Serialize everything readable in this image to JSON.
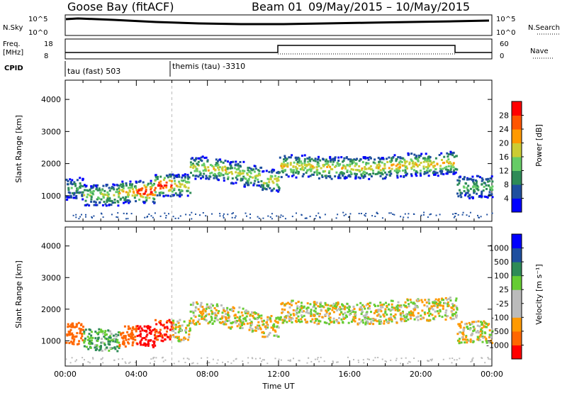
{
  "header": {
    "title": "Goose Bay (fitACF)",
    "beam": "Beam 01",
    "date_range": "09/May/2015 – 10/May/2015"
  },
  "panels": {
    "nsky_label": "N.Sky",
    "nsearch_label": "N.Search",
    "freq_label_1": "Freq.",
    "freq_label_2": "[MHz]",
    "nave_label": "Nave",
    "cpid_label": "CPID",
    "exp_left": "tau (fast) 503",
    "exp_right": "themis (tau) -3310",
    "noise_left_ticks": [
      "10^5",
      "10^0"
    ],
    "noise_right_ticks": [
      "10^5",
      "10^0"
    ],
    "freq_left_ticks": [
      "18",
      "8"
    ],
    "freq_right_ticks": [
      "60",
      "0"
    ]
  },
  "colors": {
    "power": [
      "#0000ff",
      "#1f4f9f",
      "#2e8b57",
      "#66cc66",
      "#cccc33",
      "#ff9900",
      "#ff5500",
      "#ff0000"
    ],
    "velocity": [
      "#ff0000",
      "#ff6600",
      "#ff9900",
      "#bbbbbb",
      "#bbbbbb",
      "#66cc33",
      "#2e8b57",
      "#1f4f9f",
      "#0000ff"
    ]
  },
  "chart_data": [
    {
      "type": "heatmap",
      "name": "power",
      "xlabel": "",
      "ylabel": "Slant Range [km]",
      "xlim": [
        0,
        24
      ],
      "ylim": [
        200,
        4600
      ],
      "y_ticks": [
        "4000",
        "3000",
        "2000",
        "1000"
      ],
      "colorbar_label": "Power [dB]",
      "colorbar_ticks": [
        "28",
        "24",
        "20",
        "16",
        "12",
        "8",
        "4"
      ],
      "x": [
        0,
        1,
        2,
        3,
        4,
        5,
        6,
        7,
        8,
        9,
        10,
        11,
        12,
        13,
        14,
        15,
        16,
        17,
        18,
        19,
        20,
        21,
        22,
        23
      ],
      "echo_band_center_km": [
        1250,
        1050,
        1050,
        1150,
        1150,
        1350,
        1350,
        1900,
        1850,
        1750,
        1650,
        1500,
        1950,
        1950,
        1900,
        1900,
        1900,
        1900,
        1950,
        2000,
        2000,
        2050,
        1300,
        1300
      ],
      "peak_power_db": [
        10,
        14,
        16,
        20,
        30,
        28,
        18,
        16,
        18,
        16,
        16,
        18,
        18,
        18,
        18,
        18,
        18,
        18,
        20,
        20,
        20,
        20,
        12,
        12
      ]
    },
    {
      "type": "heatmap",
      "name": "velocity",
      "xlabel": "Time UT",
      "ylabel": "Slant Range [km]",
      "xlim": [
        0,
        24
      ],
      "ylim": [
        200,
        4600
      ],
      "x_ticks": [
        "00:00",
        "04:00",
        "08:00",
        "12:00",
        "16:00",
        "20:00",
        "00:00"
      ],
      "y_ticks": [
        "4000",
        "3000",
        "2000",
        "1000"
      ],
      "colorbar_label": "Velocity [m s⁻¹]",
      "colorbar_ticks": [
        "1000",
        "500",
        "100",
        "25",
        "-25",
        "-100",
        "-500",
        "-1000"
      ],
      "x": [
        0,
        1,
        2,
        3,
        4,
        5,
        6,
        7,
        8,
        9,
        10,
        11,
        12,
        13,
        14,
        15,
        16,
        17,
        18,
        19,
        20,
        21,
        22,
        23
      ],
      "echo_band_center_km": [
        1250,
        1050,
        1050,
        1150,
        1150,
        1350,
        1350,
        1900,
        1850,
        1750,
        1650,
        1500,
        1950,
        1950,
        1900,
        1900,
        1900,
        1900,
        1950,
        2000,
        2000,
        2050,
        1300,
        1300
      ],
      "typical_velocity_ms": [
        -200,
        100,
        100,
        -300,
        -600,
        -500,
        0,
        0,
        0,
        0,
        0,
        0,
        0,
        0,
        0,
        0,
        0,
        0,
        0,
        0,
        0,
        0,
        0,
        0
      ]
    }
  ]
}
